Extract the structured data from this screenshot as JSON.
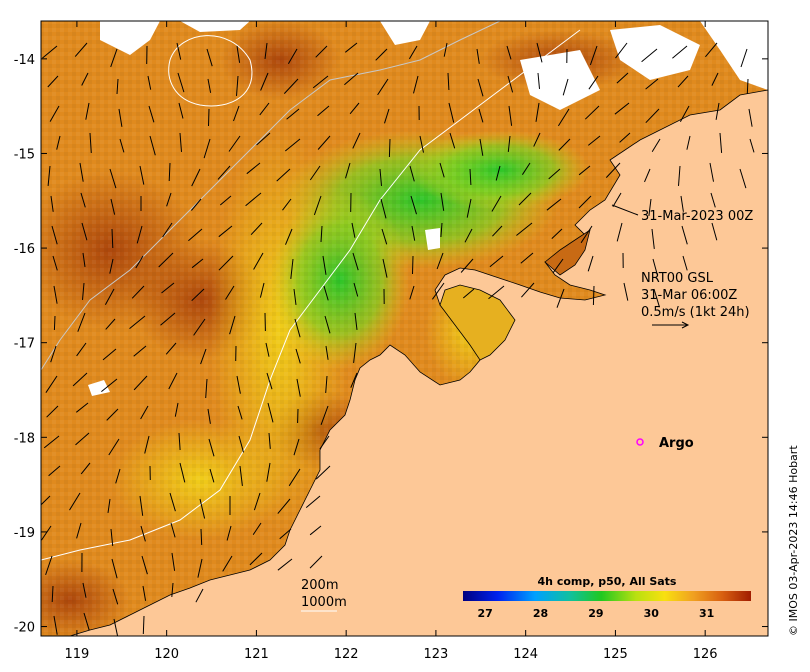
{
  "map": {
    "lon_range": [
      118.6,
      126.7
    ],
    "lat_range": [
      -20.1,
      -13.6
    ],
    "x_ticks": [
      "119",
      "120",
      "121",
      "122",
      "123",
      "124",
      "125",
      "126"
    ],
    "y_ticks": [
      "-14",
      "-15",
      "-16",
      "-17",
      "-18",
      "-19",
      "-20"
    ],
    "colors": {
      "land": "#fdc897",
      "sst_cool": "#2ecf2a",
      "sst_mid": "#f0d21a",
      "sst_warm": "#e08a1e",
      "sst_hot": "#b84c0c",
      "cloud": "#ffffff",
      "coastline": "#000000",
      "isobath": "#c8c8c8"
    }
  },
  "annotations": {
    "satellite_time": "31-Mar-2023 00Z",
    "current_source": "NRT00 GSL",
    "current_time": "31-Mar 06:00Z",
    "scale_arrow_label": "0.5m/s (1kt 24h)",
    "argo_label": "Argo",
    "isobath_200": "200m",
    "isobath_1000": "1000m"
  },
  "colorbar": {
    "title": "4h comp, p50, All Sats",
    "ticks": [
      "27",
      "28",
      "29",
      "30",
      "31"
    ],
    "range": [
      26.6,
      31.8
    ]
  },
  "credit": "© IMOS 03-Apr-2023 14:46 Hobart"
}
